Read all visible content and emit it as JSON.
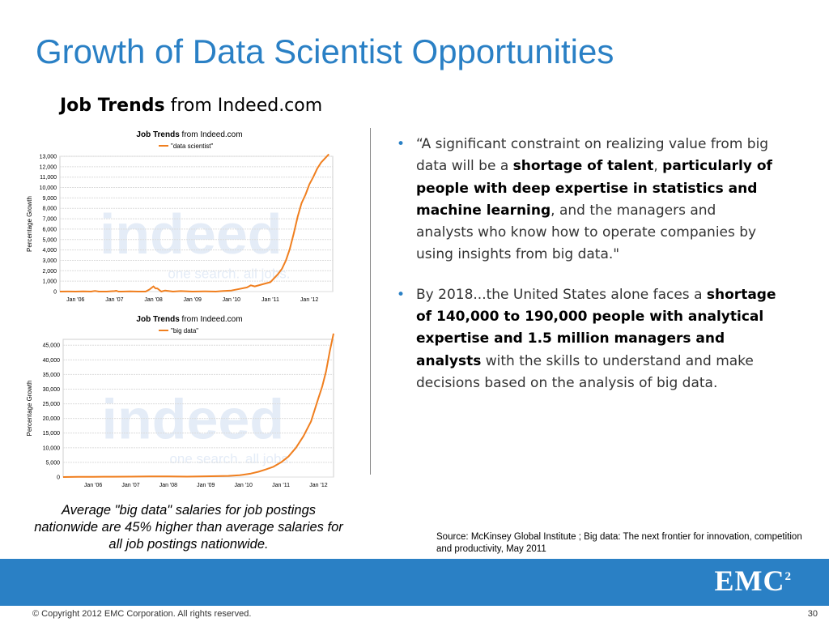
{
  "slide": {
    "title": "Growth of Data Scientist Opportunities",
    "subtitle_bold": "Job Trends",
    "subtitle_rest": " from Indeed.com",
    "caption": "Average \"big data\" salaries for job postings nationwide are 45% higher than average salaries for all job postings nationwide.",
    "source": "Source: McKinsey Global Institute ; Big data: The next frontier for innovation, competition and productivity, May 2011",
    "brand": {
      "name": "EMC",
      "superscript": "2",
      "color": "#2a80c5"
    },
    "copyright": "© Copyright 2012 EMC Corporation. All rights reserved.",
    "page_number": "30"
  },
  "bullets": [
    {
      "parts": [
        {
          "text": "“A significant constraint on realizing value from big data will be a ",
          "bold": false
        },
        {
          "text": "shortage of talent",
          "bold": true
        },
        {
          "text": ", ",
          "bold": false
        },
        {
          "text": "particularly of people with deep expertise  in statistics and machine learning",
          "bold": true
        },
        {
          "text": ",  and the managers and analysts who know how to operate companies by using insights from big data.\"",
          "bold": false
        }
      ]
    },
    {
      "parts": [
        {
          "text": "By 2018...the United States alone faces a ",
          "bold": false
        },
        {
          "text": "shortage of 140,000 to 190,000 people with analytical expertise and 1.5 million managers and analysts",
          "bold": true
        },
        {
          "text": " with the skills to understand and make decisions based on the analysis of big data.",
          "bold": false
        }
      ]
    }
  ],
  "chart_data": [
    {
      "type": "line",
      "title_bold": "Job Trends",
      "title_rest": " from Indeed.com",
      "legend": "\"data scientist\"",
      "ylabel": "Percentage Growth",
      "watermark": "indeed",
      "watermark_tagline": "one search. all jobs.",
      "line_color": "#f07f1f",
      "ylim": [
        0,
        13000
      ],
      "yticks": [
        0,
        1000,
        2000,
        3000,
        4000,
        5000,
        6000,
        7000,
        8000,
        9000,
        10000,
        11000,
        12000,
        13000
      ],
      "ytick_labels": [
        "0",
        "1,000",
        "2,000",
        "3,000",
        "4,000",
        "5,000",
        "6,000",
        "7,000",
        "8,000",
        "9,000",
        "10,000",
        "11,000",
        "12,000",
        "13,000"
      ],
      "xlim": [
        2005.6,
        2012.6
      ],
      "xticks": [
        2006,
        2007,
        2008,
        2009,
        2010,
        2011,
        2012
      ],
      "xtick_labels": [
        "Jan '06",
        "Jan '07",
        "Jan '08",
        "Jan '09",
        "Jan '10",
        "Jan '11",
        "Jan '12"
      ],
      "series": [
        {
          "x": [
            2005.6,
            2005.8,
            2006.0,
            2006.2,
            2006.4,
            2006.5,
            2006.6,
            2006.8,
            2007.0,
            2007.05,
            2007.1,
            2007.2,
            2007.4,
            2007.6,
            2007.8,
            2007.9,
            2008.0,
            2008.05,
            2008.1,
            2008.2,
            2008.3,
            2008.5,
            2008.7,
            2009.0,
            2009.3,
            2009.6,
            2009.8,
            2010.0,
            2010.2,
            2010.4,
            2010.5,
            2010.6,
            2010.8,
            2011.0,
            2011.1,
            2011.2,
            2011.3,
            2011.4,
            2011.5,
            2011.6,
            2011.7,
            2011.8,
            2011.9,
            2012.0,
            2012.1,
            2012.2,
            2012.3,
            2012.4,
            2012.5
          ],
          "y": [
            0,
            10,
            0,
            20,
            0,
            60,
            0,
            0,
            50,
            80,
            0,
            0,
            20,
            0,
            0,
            200,
            500,
            300,
            300,
            0,
            100,
            0,
            50,
            0,
            20,
            0,
            60,
            100,
            250,
            400,
            600,
            500,
            700,
            900,
            1300,
            1700,
            2200,
            3000,
            4100,
            5600,
            7200,
            8500,
            9300,
            10300,
            11000,
            11800,
            12400,
            12800,
            13200
          ]
        }
      ]
    },
    {
      "type": "line",
      "title_bold": "Job Trends",
      "title_rest": " from Indeed.com",
      "legend": "\"big data\"",
      "ylabel": "Percentage Growth",
      "watermark": "indeed",
      "watermark_tagline": "one search. all jobs.",
      "line_color": "#f07f1f",
      "ylim": [
        0,
        47000
      ],
      "yticks": [
        0,
        5000,
        10000,
        15000,
        20000,
        25000,
        30000,
        35000,
        40000,
        45000
      ],
      "ytick_labels": [
        "0",
        "5,000",
        "10,000",
        "15,000",
        "20,000",
        "25,000",
        "30,000",
        "35,000",
        "40,000",
        "45,000"
      ],
      "xlim": [
        2005.2,
        2012.4
      ],
      "xticks": [
        2006,
        2007,
        2008,
        2009,
        2010,
        2011,
        2012
      ],
      "xtick_labels": [
        "Jan '06",
        "Jan '07",
        "Jan '08",
        "Jan '09",
        "Jan '10",
        "Jan '11",
        "Jan '12"
      ],
      "series": [
        {
          "x": [
            2005.2,
            2005.6,
            2006.0,
            2006.5,
            2007.0,
            2007.5,
            2008.0,
            2008.5,
            2009.0,
            2009.3,
            2009.6,
            2009.9,
            2010.0,
            2010.2,
            2010.4,
            2010.6,
            2010.8,
            2011.0,
            2011.2,
            2011.4,
            2011.6,
            2011.8,
            2011.9,
            2012.0,
            2012.1,
            2012.2,
            2012.3,
            2012.4
          ],
          "y": [
            0,
            50,
            80,
            100,
            150,
            200,
            200,
            150,
            250,
            300,
            400,
            600,
            800,
            1200,
            1800,
            2600,
            3500,
            5000,
            7000,
            10000,
            14000,
            19000,
            23000,
            27000,
            31000,
            36000,
            43000,
            49000
          ]
        }
      ]
    }
  ]
}
